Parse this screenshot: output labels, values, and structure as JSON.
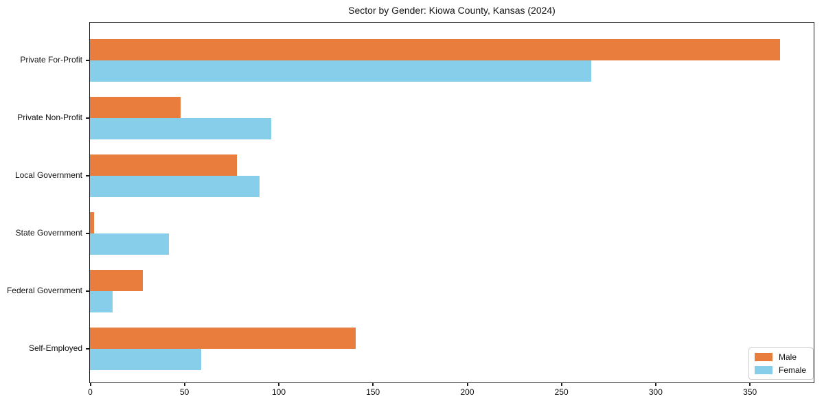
{
  "chart_data": {
    "type": "bar",
    "orientation": "horizontal",
    "title": "Sector by Gender: Kiowa County, Kansas (2024)",
    "xlabel": "",
    "ylabel": "",
    "categories": [
      "Private For-Profit",
      "Private Non-Profit",
      "Local Government",
      "State Government",
      "Federal Government",
      "Self-Employed"
    ],
    "series": [
      {
        "name": "Male",
        "color": "#e87d3e",
        "values": [
          366,
          48,
          78,
          2,
          28,
          141
        ]
      },
      {
        "name": "Female",
        "color": "#87ceeb",
        "values": [
          266,
          96,
          90,
          42,
          12,
          59
        ]
      }
    ],
    "xlim": [
      0,
      384
    ],
    "xticks": [
      0,
      50,
      100,
      150,
      200,
      250,
      300,
      350
    ],
    "grid": false,
    "legend_position": "lower right",
    "colors": {
      "male": "#e87d3e",
      "female": "#87ceeb",
      "axis": "#1a1a1a",
      "legend_border": "#cccccc"
    }
  }
}
